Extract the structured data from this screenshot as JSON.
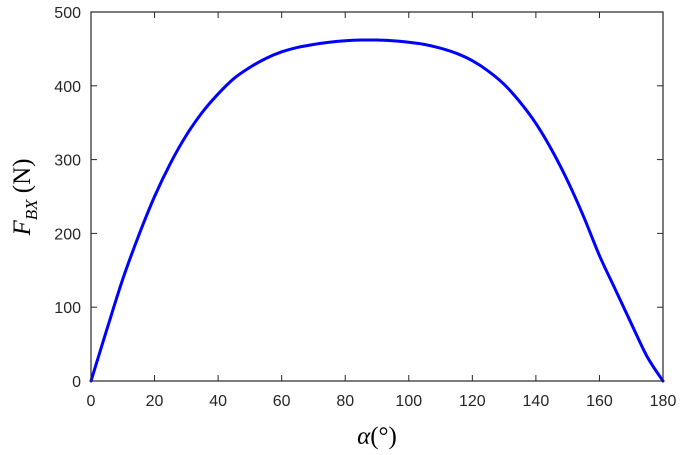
{
  "chart_data": {
    "type": "line",
    "xlabel_symbol": "α",
    "xlabel_unit": "(°)",
    "ylabel_symbol": "F",
    "ylabel_subscript": "BX",
    "ylabel_unit": " (N)",
    "xlim": [
      0,
      180
    ],
    "ylim": [
      0,
      500
    ],
    "xticks": [
      0,
      20,
      40,
      60,
      80,
      100,
      120,
      140,
      160,
      180
    ],
    "yticks": [
      0,
      100,
      200,
      300,
      400,
      500
    ],
    "grid": false,
    "legend": "none",
    "series": [
      {
        "color": "#0000ff",
        "x": [
          0,
          5,
          10,
          15,
          20,
          25,
          30,
          35,
          40,
          45,
          50,
          55,
          60,
          65,
          70,
          75,
          80,
          85,
          90,
          95,
          100,
          105,
          110,
          115,
          120,
          125,
          130,
          135,
          140,
          145,
          150,
          155,
          160,
          165,
          170,
          175,
          180
        ],
        "y": [
          0,
          70,
          138,
          197,
          250,
          295,
          333,
          364,
          389,
          410,
          425,
          437,
          446,
          452,
          456,
          459,
          461,
          462,
          462,
          461,
          459,
          456,
          451,
          444,
          434,
          420,
          402,
          378,
          349,
          313,
          271,
          223,
          170,
          124,
          78,
          33,
          0
        ]
      }
    ]
  }
}
